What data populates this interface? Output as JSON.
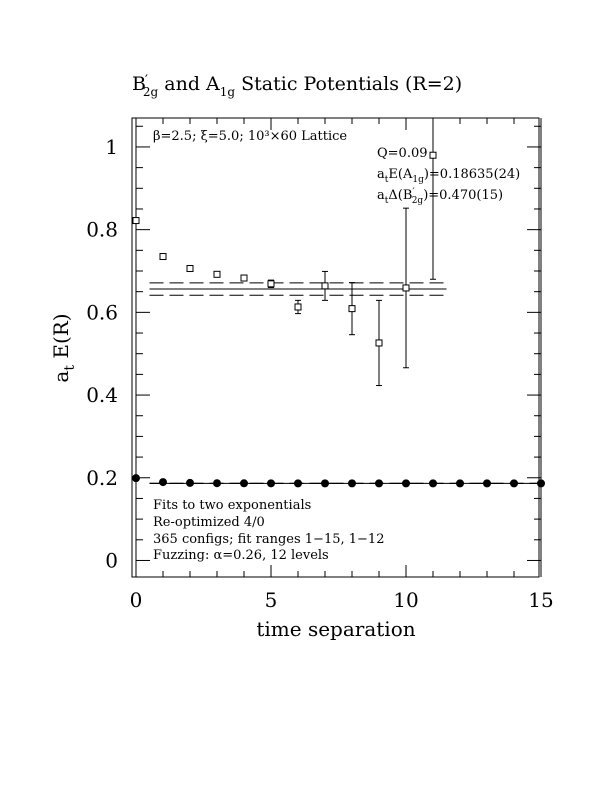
{
  "chart_data": {
    "type": "scatter",
    "title": {
      "part1": "B",
      "part1_prime": "′",
      "part1_sub": "2g",
      "part2": " and A",
      "part2_sub": "1g",
      "part3": " Static Potentials (R=2)"
    },
    "xlabel": "time separation",
    "ylabel": {
      "main": "a",
      "sub": "t",
      "rest": " E(R)"
    },
    "xlim": [
      0,
      15
    ],
    "ylim": [
      -0.04,
      1.07
    ],
    "x_ticks": [
      {
        "value": 0,
        "label": "0"
      },
      {
        "value": 5,
        "label": "5"
      },
      {
        "value": 10,
        "label": "10"
      },
      {
        "value": 15,
        "label": "15"
      }
    ],
    "y_ticks": [
      {
        "value": 0,
        "label": "0"
      },
      {
        "value": 0.2,
        "label": "0.2"
      },
      {
        "value": 0.4,
        "label": "0.4"
      },
      {
        "value": 0.6,
        "label": "0.6"
      },
      {
        "value": 0.8,
        "label": "0.8"
      },
      {
        "value": 1.0,
        "label": "1"
      }
    ],
    "grid": false,
    "lattice_label": "β=2.5; ξ=5.0; 10³×60 Lattice",
    "fit_info": {
      "q": "Q=0.09",
      "energy_a1g": {
        "prefix": "a",
        "prefix_sub": "t",
        "mid": "E(A",
        "state_sub": "1g",
        "value": ")=0.18635(24)"
      },
      "gap_b2g": {
        "prefix": "a",
        "prefix_sub": "t",
        "mid": "Δ(B",
        "prime": "′",
        "state_sub": "2g",
        "value": ")=0.470(15)"
      }
    },
    "notes": [
      "Fits to two exponentials",
      "Re-optimized 4/0",
      "365 configs; fit ranges 1−15, 1−12",
      "Fuzzing: α=0.26, 12 levels"
    ],
    "series": [
      {
        "marker": "filled-circle",
        "x": [
          0,
          1,
          2,
          3,
          4,
          5,
          6,
          7,
          8,
          9,
          10,
          11,
          12,
          13,
          14,
          15
        ],
        "y": [
          0.199,
          0.1895,
          0.1875,
          0.1868,
          0.1866,
          0.1865,
          0.1864,
          0.1864,
          0.1864,
          0.1864,
          0.1864,
          0.1864,
          0.1864,
          0.1864,
          0.1864,
          0.1864
        ],
        "err": [
          0.001,
          0.0006,
          0.0005,
          0.0005,
          0.0005,
          0.0005,
          0.0005,
          0.0005,
          0.0005,
          0.0005,
          0.0005,
          0.0005,
          0.0005,
          0.0005,
          0.0005,
          0.0005
        ]
      },
      {
        "marker": "open-square",
        "x": [
          0,
          1,
          2,
          3,
          4,
          5,
          6,
          7,
          8,
          9,
          10,
          11
        ],
        "y": [
          0.822,
          0.735,
          0.706,
          0.692,
          0.683,
          0.669,
          0.613,
          0.664,
          0.609,
          0.526,
          0.659,
          0.98
        ],
        "err": [
          0.004,
          0.004,
          0.004,
          0.005,
          0.006,
          0.009,
          0.016,
          0.035,
          0.063,
          0.103,
          0.193,
          0.3
        ]
      }
    ],
    "fit_bands": [
      {
        "center": 0.1864,
        "upper": 0.1866,
        "lower": 0.1861,
        "x_range": [
          0.5,
          15
        ]
      },
      {
        "center": 0.6564,
        "upper": 0.6714,
        "lower": 0.6414,
        "x_range": [
          0.5,
          11.5
        ]
      }
    ]
  }
}
